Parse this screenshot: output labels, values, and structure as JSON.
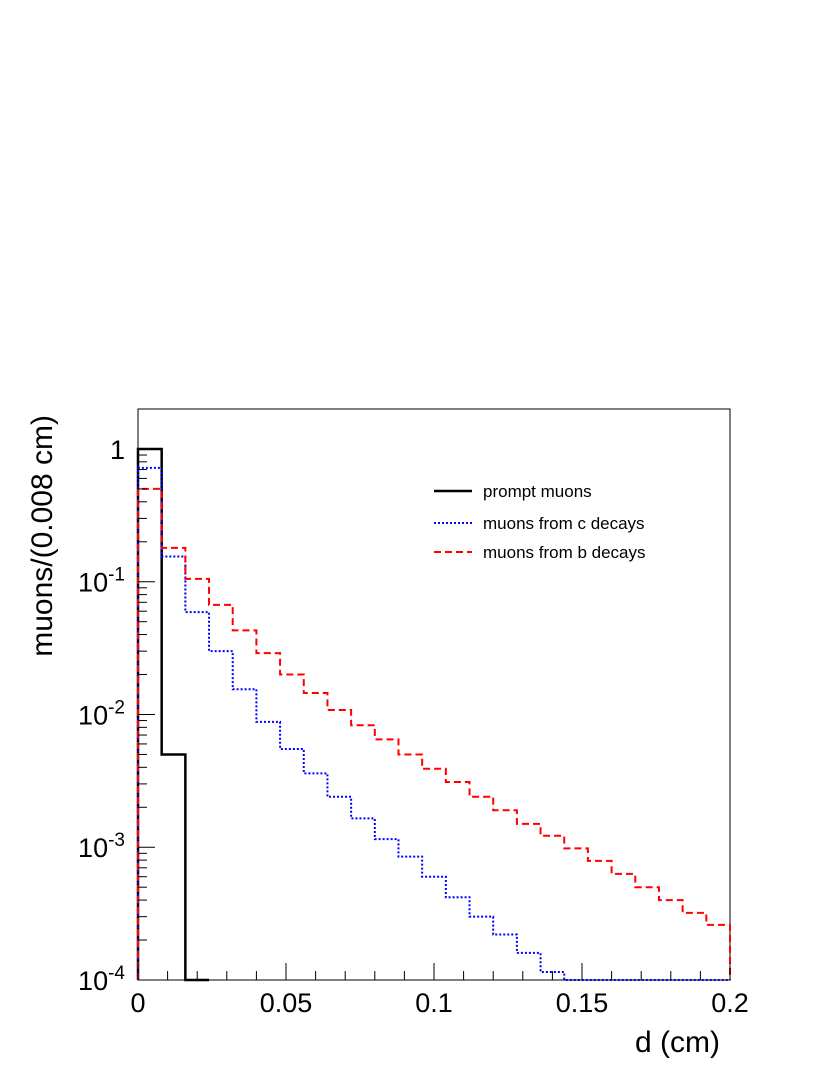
{
  "chart_data": {
    "type": "line",
    "step": true,
    "xlabel": "d (cm)",
    "ylabel": "muons/(0.008 cm)",
    "xlim": [
      0,
      0.2
    ],
    "ylim": [
      0.0001,
      2
    ],
    "yscale": "log",
    "bin_width": 0.008,
    "bin_edges": [
      0,
      0.008,
      0.016,
      0.024,
      0.032,
      0.04,
      0.048,
      0.056,
      0.064,
      0.072,
      0.08,
      0.088,
      0.096,
      0.104,
      0.112,
      0.12,
      0.128,
      0.136,
      0.144,
      0.152,
      0.16,
      0.168,
      0.176,
      0.184,
      0.192,
      0.2
    ],
    "x_ticks": [
      "0",
      "0.05",
      "0.1",
      "0.15",
      "0.2"
    ],
    "y_ticks": [
      {
        "value": 1,
        "label": "1",
        "base": "",
        "exp": ""
      },
      {
        "value": 0.1,
        "label": "",
        "base": "10",
        "exp": "-1"
      },
      {
        "value": 0.01,
        "label": "",
        "base": "10",
        "exp": "-2"
      },
      {
        "value": 0.001,
        "label": "",
        "base": "10",
        "exp": "-3"
      },
      {
        "value": 0.0001,
        "label": "",
        "base": "10",
        "exp": "-4"
      }
    ],
    "grid": false,
    "legend_position": "top-right",
    "series": [
      {
        "name": "prompt muons",
        "color": "#000000",
        "dash": "solid",
        "values": [
          1.0,
          0.005,
          0.0001
        ]
      },
      {
        "name": "muons from c decays",
        "color": "#0000ff",
        "dash": "dotted",
        "values": [
          0.72,
          0.155,
          0.059,
          0.03,
          0.0155,
          0.0088,
          0.0055,
          0.0036,
          0.0024,
          0.00165,
          0.00115,
          0.00085,
          0.0006,
          0.00042,
          0.0003,
          0.00022,
          0.00016,
          0.000115,
          0.0001,
          0.0001,
          0.0001,
          0.0001,
          0.0001,
          0.0001,
          0.0001
        ]
      },
      {
        "name": "muons from b decays",
        "color": "#ff0000",
        "dash": "dashed",
        "values": [
          0.5,
          0.18,
          0.105,
          0.067,
          0.043,
          0.029,
          0.02,
          0.0145,
          0.0108,
          0.0083,
          0.0065,
          0.005,
          0.0039,
          0.0031,
          0.0024,
          0.0019,
          0.0015,
          0.00122,
          0.00098,
          0.00079,
          0.00063,
          0.0005,
          0.0004,
          0.00032,
          0.00026
        ]
      }
    ]
  }
}
